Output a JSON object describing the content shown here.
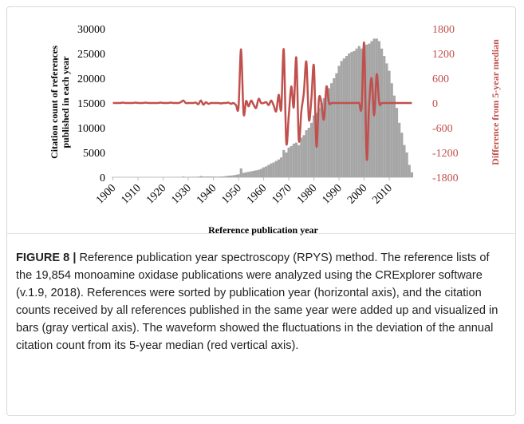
{
  "chart_data": {
    "type": "bar-line",
    "x_label": "Reference publication year",
    "y_label": [
      "Citation count of references",
      "published in each year"
    ],
    "y2_label": "Difference from 5-year median",
    "x": [
      1900,
      1901,
      1902,
      1903,
      1904,
      1905,
      1906,
      1907,
      1908,
      1909,
      1910,
      1911,
      1912,
      1913,
      1914,
      1915,
      1916,
      1917,
      1918,
      1919,
      1920,
      1921,
      1922,
      1923,
      1924,
      1925,
      1926,
      1927,
      1928,
      1929,
      1930,
      1931,
      1932,
      1933,
      1934,
      1935,
      1936,
      1937,
      1938,
      1939,
      1940,
      1941,
      1942,
      1943,
      1944,
      1945,
      1946,
      1947,
      1948,
      1949,
      1950,
      1951,
      1952,
      1953,
      1954,
      1955,
      1956,
      1957,
      1958,
      1959,
      1960,
      1961,
      1962,
      1963,
      1964,
      1965,
      1966,
      1967,
      1968,
      1969,
      1970,
      1971,
      1972,
      1973,
      1974,
      1975,
      1976,
      1977,
      1978,
      1979,
      1980,
      1981,
      1982,
      1983,
      1984,
      1985,
      1986,
      1987,
      1988,
      1989,
      1990,
      1991,
      1992,
      1993,
      1994,
      1995,
      1996,
      1997,
      1998,
      1999,
      2000,
      2001,
      2002,
      2003,
      2004,
      2005,
      2006,
      2007,
      2008,
      2009,
      2010,
      2011,
      2012,
      2013,
      2014,
      2015,
      2016,
      2017,
      2018,
      2019
    ],
    "series": [
      {
        "name": "Citation count",
        "color": "#a6a6a6",
        "values": [
          10,
          10,
          15,
          10,
          15,
          20,
          15,
          20,
          20,
          25,
          20,
          25,
          25,
          30,
          30,
          20,
          20,
          25,
          30,
          35,
          35,
          40,
          40,
          50,
          50,
          60,
          60,
          70,
          150,
          80,
          80,
          90,
          100,
          100,
          120,
          250,
          150,
          150,
          160,
          150,
          140,
          130,
          120,
          150,
          180,
          250,
          300,
          350,
          400,
          500,
          600,
          1800,
          900,
          1000,
          1100,
          1200,
          1300,
          1400,
          1500,
          1700,
          2000,
          2200,
          2500,
          2800,
          3000,
          3300,
          3600,
          4000,
          5500,
          5000,
          6000,
          6300,
          6800,
          7000,
          6500,
          8000,
          8500,
          9500,
          10000,
          11000,
          12500,
          13000,
          14000,
          15000,
          16000,
          17000,
          18000,
          19000,
          20000,
          21000,
          22500,
          23500,
          24000,
          24500,
          25000,
          25300,
          25500,
          26000,
          26500,
          26000,
          26500,
          26800,
          27000,
          27500,
          28000,
          28000,
          27500,
          26000,
          24500,
          23000,
          21500,
          19000,
          16500,
          14000,
          11000,
          9000,
          6500,
          5000,
          2500,
          1000
        ]
      },
      {
        "name": "Difference from 5-year median",
        "color": "#c0504d",
        "axis": "y2",
        "values": [
          0,
          0,
          0,
          0,
          10,
          0,
          0,
          0,
          0,
          10,
          0,
          0,
          0,
          10,
          0,
          0,
          0,
          0,
          0,
          10,
          0,
          0,
          0,
          10,
          0,
          0,
          0,
          20,
          60,
          0,
          0,
          0,
          0,
          10,
          -30,
          60,
          -40,
          20,
          -20,
          0,
          0,
          0,
          0,
          -10,
          0,
          0,
          10,
          -20,
          0,
          -50,
          -100,
          1300,
          -250,
          50,
          -80,
          60,
          -40,
          -120,
          100,
          0,
          0,
          20,
          -50,
          60,
          -60,
          -200,
          200,
          -150,
          1300,
          -950,
          -300,
          400,
          -100,
          1100,
          -900,
          -200,
          250,
          1000,
          -400,
          100,
          900,
          -1050,
          100,
          0,
          -400,
          400,
          0,
          0,
          0,
          0,
          0,
          0,
          0,
          0,
          0,
          0,
          0,
          0,
          0,
          -100,
          1450,
          -1350,
          0,
          600,
          -300,
          700,
          0,
          0,
          0,
          0,
          0,
          0,
          0,
          0,
          0,
          0,
          0,
          0,
          0,
          0
        ]
      }
    ],
    "xlim": [
      1899.5,
      2019.5
    ],
    "xticks": [
      1900,
      1910,
      1920,
      1930,
      1940,
      1950,
      1960,
      1970,
      1980,
      1990,
      2000,
      2010
    ],
    "ylim": [
      0,
      30000
    ],
    "yticks": [
      0,
      5000,
      10000,
      15000,
      20000,
      25000,
      30000
    ],
    "y2lim": [
      -1800,
      1800
    ],
    "y2ticks": [
      -1800,
      -1200,
      -600,
      0,
      600,
      1200,
      1800
    ]
  },
  "figure_label": "FIGURE 8 |",
  "caption": "Reference publication year spectroscopy (RPYS) method. The reference lists of the 19,854 monoamine oxidase publications were analyzed using the CRExplorer software (v.1.9, 2018). References were sorted by publication year (horizontal axis), and the citation counts received by all references published in the same year were added up and visualized in bars (gray vertical axis). The waveform showed the fluctuations in the deviation of the annual citation count from its 5-year median (red vertical axis)."
}
